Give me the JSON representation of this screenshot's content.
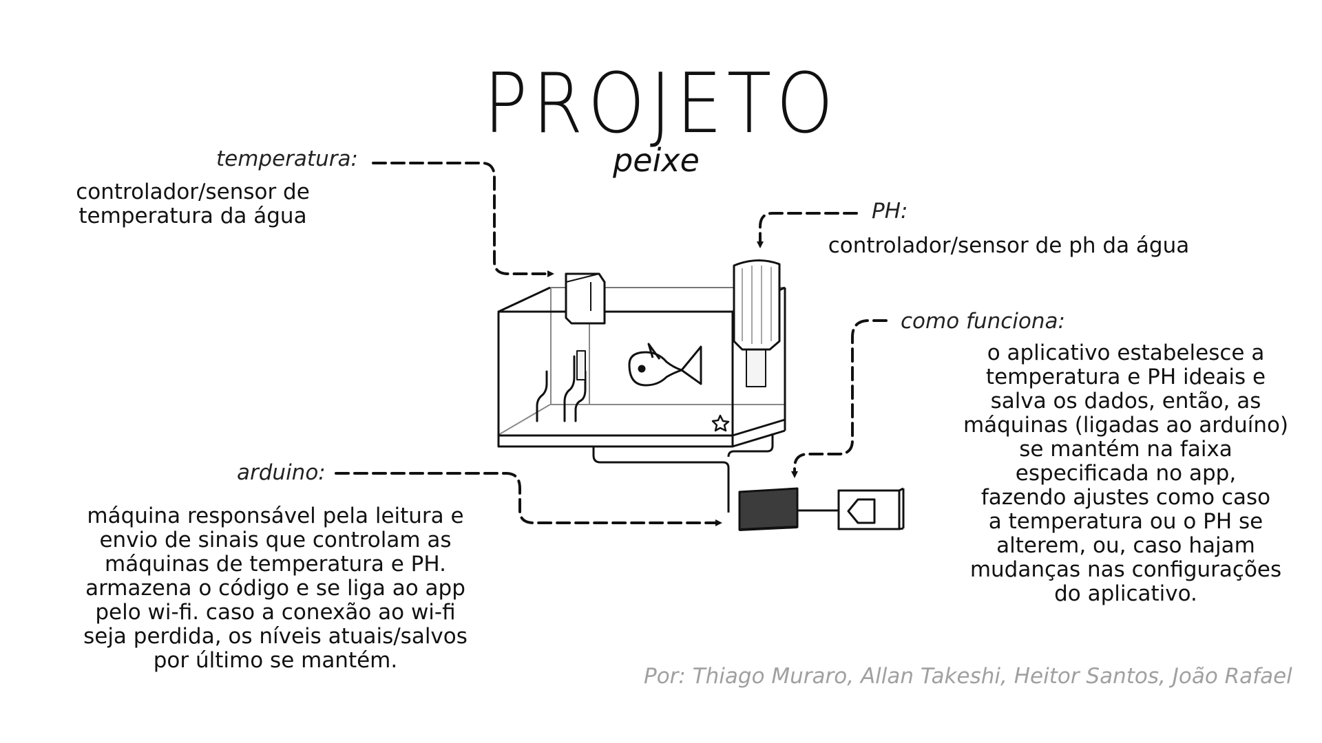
{
  "title": "PROJETO",
  "subtitle": "peixe",
  "temperatura": {
    "label": "temperatura:",
    "description_lines": [
      "controlador/sensor de",
      "temperatura da água"
    ]
  },
  "ph": {
    "label": "PH:",
    "description": "controlador/sensor de ph da água"
  },
  "arduino": {
    "label": "arduino:",
    "description_lines": [
      "máquina responsável pela leitura e",
      "envio de sinais que controlam as",
      "máquinas de temperatura e PH.",
      "armazena o código e se liga ao app",
      "pelo wi-fi. caso a conexão ao wi-fi",
      "seja perdida, os níveis atuais/salvos",
      "por último se mantém."
    ]
  },
  "como_funciona": {
    "label": "como funciona:",
    "description_lines": [
      "o aplicativo estabelesce a",
      "temperatura e PH ideais e",
      "salva os dados, então, as",
      "máquinas (ligadas ao arduíno)",
      "se mantém na faixa",
      "especificada no app,",
      "fazendo ajustes como caso",
      "a temperatura ou o PH se",
      "alterem, ou, caso hajam",
      "mudanças nas configurações",
      "do aplicativo."
    ]
  },
  "credits": "Por: Thiago Muraro, Allan Takeshi, Heitor Santos, João Rafael",
  "colors": {
    "ink": "#111111",
    "credits": "#a0a0a0",
    "arduino_body": "#3c3c3c"
  },
  "icons": [
    "fish-icon",
    "starfish-icon",
    "plant-icon",
    "phone-icon"
  ]
}
